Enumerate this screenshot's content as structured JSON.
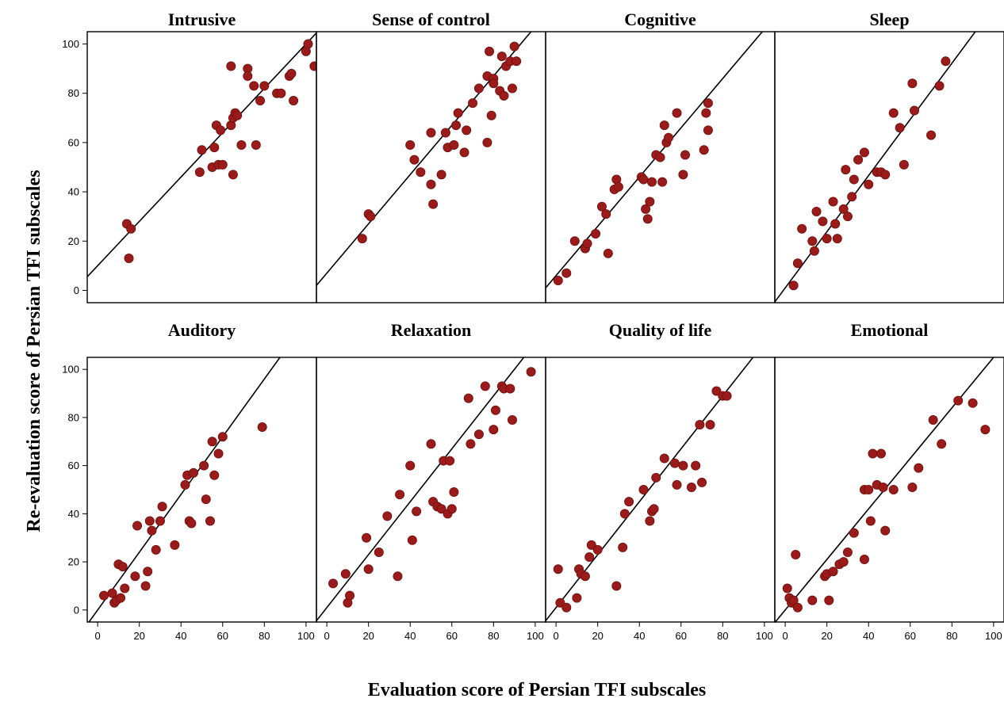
{
  "figure": {
    "ylabel": "Re-evaluation score of Persian TFI subscales",
    "xlabel": "Evaluation score of Persian TFI subscales",
    "x_ticks": [
      "0",
      "20",
      "40",
      "60",
      "80",
      "100"
    ],
    "y_ticks": [
      "0",
      "20",
      "40",
      "60",
      "80",
      "100"
    ]
  },
  "colors": {
    "point": "#9b1b1b",
    "point_stroke": "#6e0f0f",
    "line": "#000000",
    "frame": "#000000"
  },
  "chart_data": [
    {
      "type": "scatter",
      "title": "Intrusive",
      "xlim": [
        -5,
        105
      ],
      "ylim": [
        -5,
        105
      ],
      "fit": {
        "slope": 0.9,
        "intercept": 10
      },
      "points": [
        [
          14,
          27
        ],
        [
          16,
          25
        ],
        [
          15,
          13
        ],
        [
          49,
          48
        ],
        [
          50,
          57
        ],
        [
          55,
          50
        ],
        [
          56,
          58
        ],
        [
          57,
          67
        ],
        [
          58,
          51
        ],
        [
          59,
          65
        ],
        [
          60,
          51
        ],
        [
          64,
          91
        ],
        [
          64,
          67
        ],
        [
          65,
          70
        ],
        [
          66,
          72
        ],
        [
          67,
          71
        ],
        [
          65,
          47
        ],
        [
          69,
          59
        ],
        [
          72,
          90
        ],
        [
          72,
          87
        ],
        [
          75,
          83
        ],
        [
          76,
          59
        ],
        [
          78,
          77
        ],
        [
          80,
          83
        ],
        [
          86,
          80
        ],
        [
          88,
          80
        ],
        [
          92,
          87
        ],
        [
          93,
          88
        ],
        [
          94,
          77
        ],
        [
          100,
          97
        ],
        [
          101,
          100
        ],
        [
          104,
          91
        ]
      ]
    },
    {
      "type": "scatter",
      "title": "Sense of control",
      "xlim": [
        -5,
        105
      ],
      "ylim": [
        -5,
        105
      ],
      "fit": {
        "slope": 1.0,
        "intercept": 7
      },
      "points": [
        [
          17,
          21
        ],
        [
          20,
          31
        ],
        [
          21,
          30
        ],
        [
          40,
          59
        ],
        [
          42,
          53
        ],
        [
          45,
          48
        ],
        [
          50,
          64
        ],
        [
          51,
          35
        ],
        [
          50,
          43
        ],
        [
          55,
          47
        ],
        [
          57,
          64
        ],
        [
          58,
          58
        ],
        [
          61,
          59
        ],
        [
          62,
          67
        ],
        [
          63,
          72
        ],
        [
          66,
          56
        ],
        [
          67,
          65
        ],
        [
          70,
          76
        ],
        [
          73,
          82
        ],
        [
          77,
          60
        ],
        [
          77,
          87
        ],
        [
          78,
          97
        ],
        [
          79,
          71
        ],
        [
          80,
          86
        ],
        [
          80,
          84
        ],
        [
          83,
          81
        ],
        [
          84,
          95
        ],
        [
          85,
          79
        ],
        [
          86,
          91
        ],
        [
          88,
          93
        ],
        [
          89,
          82
        ],
        [
          90,
          99
        ],
        [
          91,
          93
        ]
      ]
    },
    {
      "type": "scatter",
      "title": "Cognitive",
      "xlim": [
        -5,
        105
      ],
      "ylim": [
        -5,
        105
      ],
      "fit": {
        "slope": 1.0,
        "intercept": 6
      },
      "points": [
        [
          1,
          4
        ],
        [
          5,
          7
        ],
        [
          9,
          20
        ],
        [
          14,
          17
        ],
        [
          15,
          19
        ],
        [
          19,
          23
        ],
        [
          22,
          34
        ],
        [
          24,
          31
        ],
        [
          25,
          15
        ],
        [
          28,
          41
        ],
        [
          29,
          45
        ],
        [
          30,
          42
        ],
        [
          41,
          46
        ],
        [
          42,
          45
        ],
        [
          43,
          33
        ],
        [
          44,
          29
        ],
        [
          45,
          36
        ],
        [
          46,
          44
        ],
        [
          48,
          55
        ],
        [
          50,
          54
        ],
        [
          51,
          44
        ],
        [
          52,
          67
        ],
        [
          53,
          60
        ],
        [
          54,
          62
        ],
        [
          58,
          72
        ],
        [
          61,
          47
        ],
        [
          62,
          55
        ],
        [
          71,
          57
        ],
        [
          72,
          72
        ],
        [
          73,
          76
        ],
        [
          73,
          65
        ]
      ]
    },
    {
      "type": "scatter",
      "title": "Sleep",
      "xlim": [
        -5,
        105
      ],
      "ylim": [
        -5,
        105
      ],
      "fit": {
        "slope": 1.14,
        "intercept": 1
      },
      "points": [
        [
          4,
          2
        ],
        [
          6,
          11
        ],
        [
          8,
          25
        ],
        [
          13,
          20
        ],
        [
          14,
          16
        ],
        [
          15,
          32
        ],
        [
          18,
          28
        ],
        [
          20,
          21
        ],
        [
          23,
          36
        ],
        [
          24,
          27
        ],
        [
          25,
          21
        ],
        [
          28,
          33
        ],
        [
          29,
          49
        ],
        [
          30,
          30
        ],
        [
          32,
          38
        ],
        [
          33,
          45
        ],
        [
          35,
          53
        ],
        [
          38,
          56
        ],
        [
          40,
          43
        ],
        [
          44,
          48
        ],
        [
          46,
          48
        ],
        [
          48,
          47
        ],
        [
          52,
          72
        ],
        [
          55,
          66
        ],
        [
          57,
          51
        ],
        [
          61,
          84
        ],
        [
          62,
          73
        ],
        [
          70,
          63
        ],
        [
          74,
          83
        ],
        [
          77,
          93
        ]
      ]
    },
    {
      "type": "scatter",
      "title": "Auditory",
      "xlim": [
        -5,
        105
      ],
      "ylim": [
        -5,
        105
      ],
      "fit": {
        "slope": 1.2,
        "intercept": 0
      },
      "points": [
        [
          3,
          6
        ],
        [
          7,
          7
        ],
        [
          8,
          3
        ],
        [
          9,
          4
        ],
        [
          10,
          19
        ],
        [
          11,
          5
        ],
        [
          12,
          18
        ],
        [
          13,
          9
        ],
        [
          18,
          14
        ],
        [
          19,
          35
        ],
        [
          23,
          10
        ],
        [
          24,
          16
        ],
        [
          25,
          37
        ],
        [
          26,
          33
        ],
        [
          28,
          25
        ],
        [
          30,
          37
        ],
        [
          31,
          43
        ],
        [
          37,
          27
        ],
        [
          42,
          52
        ],
        [
          43,
          56
        ],
        [
          44,
          37
        ],
        [
          45,
          36
        ],
        [
          46,
          57
        ],
        [
          51,
          60
        ],
        [
          52,
          46
        ],
        [
          54,
          37
        ],
        [
          55,
          70
        ],
        [
          56,
          56
        ],
        [
          58,
          65
        ],
        [
          60,
          72
        ],
        [
          79,
          76
        ]
      ]
    },
    {
      "type": "scatter",
      "title": "Relaxation",
      "xlim": [
        -5,
        105
      ],
      "ylim": [
        -5,
        105
      ],
      "fit": {
        "slope": 1.1,
        "intercept": 1
      },
      "points": [
        [
          3,
          11
        ],
        [
          9,
          15
        ],
        [
          10,
          3
        ],
        [
          11,
          6
        ],
        [
          19,
          30
        ],
        [
          20,
          17
        ],
        [
          25,
          24
        ],
        [
          29,
          39
        ],
        [
          34,
          14
        ],
        [
          35,
          48
        ],
        [
          40,
          60
        ],
        [
          41,
          29
        ],
        [
          43,
          41
        ],
        [
          50,
          69
        ],
        [
          51,
          45
        ],
        [
          53,
          43
        ],
        [
          56,
          62
        ],
        [
          55,
          42
        ],
        [
          58,
          40
        ],
        [
          59,
          62
        ],
        [
          60,
          42
        ],
        [
          61,
          49
        ],
        [
          68,
          88
        ],
        [
          69,
          69
        ],
        [
          73,
          73
        ],
        [
          76,
          93
        ],
        [
          80,
          75
        ],
        [
          81,
          83
        ],
        [
          84,
          93
        ],
        [
          85,
          92
        ],
        [
          88,
          92
        ],
        [
          89,
          79
        ],
        [
          98,
          99
        ]
      ]
    },
    {
      "type": "scatter",
      "title": "Quality of life",
      "xlim": [
        -5,
        105
      ],
      "ylim": [
        -5,
        105
      ],
      "fit": {
        "slope": 1.1,
        "intercept": 1
      },
      "points": [
        [
          1,
          17
        ],
        [
          2,
          3
        ],
        [
          5,
          1
        ],
        [
          10,
          5
        ],
        [
          11,
          17
        ],
        [
          12,
          15
        ],
        [
          14,
          14
        ],
        [
          16,
          22
        ],
        [
          17,
          27
        ],
        [
          20,
          25
        ],
        [
          29,
          10
        ],
        [
          32,
          26
        ],
        [
          33,
          40
        ],
        [
          35,
          45
        ],
        [
          42,
          50
        ],
        [
          45,
          37
        ],
        [
          46,
          41
        ],
        [
          47,
          42
        ],
        [
          48,
          55
        ],
        [
          52,
          63
        ],
        [
          57,
          61
        ],
        [
          58,
          52
        ],
        [
          61,
          60
        ],
        [
          65,
          51
        ],
        [
          67,
          60
        ],
        [
          69,
          77
        ],
        [
          70,
          53
        ],
        [
          74,
          77
        ],
        [
          77,
          91
        ],
        [
          80,
          89
        ],
        [
          82,
          89
        ]
      ]
    },
    {
      "type": "scatter",
      "title": "Emotional",
      "xlim": [
        -5,
        105
      ],
      "ylim": [
        -5,
        105
      ],
      "fit": {
        "slope": 1.05,
        "intercept": 0
      },
      "points": [
        [
          1,
          9
        ],
        [
          2,
          5
        ],
        [
          3,
          3
        ],
        [
          4,
          4
        ],
        [
          5,
          23
        ],
        [
          6,
          1
        ],
        [
          13,
          4
        ],
        [
          19,
          14
        ],
        [
          20,
          15
        ],
        [
          21,
          4
        ],
        [
          23,
          16
        ],
        [
          26,
          19
        ],
        [
          28,
          20
        ],
        [
          30,
          24
        ],
        [
          33,
          32
        ],
        [
          38,
          21
        ],
        [
          38,
          50
        ],
        [
          40,
          50
        ],
        [
          41,
          37
        ],
        [
          42,
          65
        ],
        [
          44,
          52
        ],
        [
          46,
          65
        ],
        [
          47,
          51
        ],
        [
          48,
          33
        ],
        [
          52,
          50
        ],
        [
          61,
          51
        ],
        [
          64,
          59
        ],
        [
          71,
          79
        ],
        [
          75,
          69
        ],
        [
          83,
          87
        ],
        [
          90,
          86
        ],
        [
          96,
          75
        ]
      ]
    }
  ]
}
